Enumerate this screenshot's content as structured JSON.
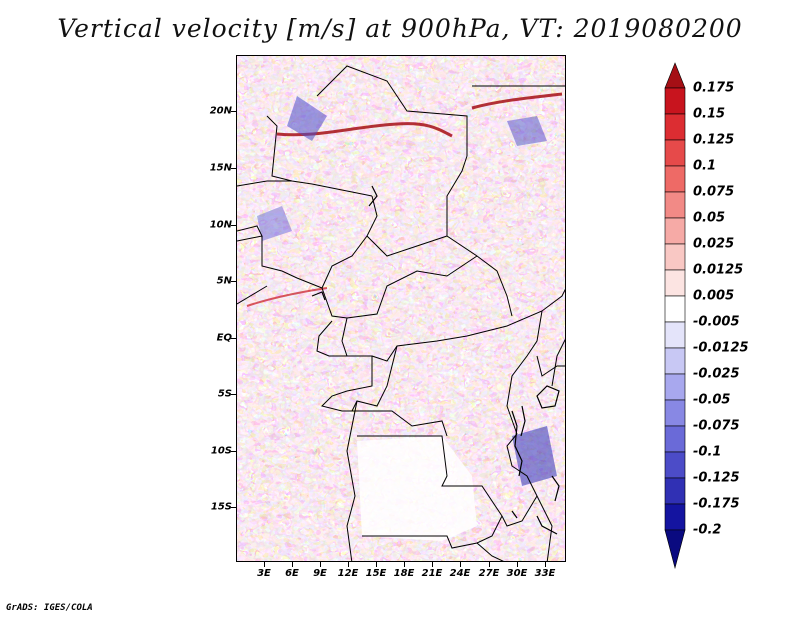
{
  "title": "Vertical velocity [m/s] at 900hPa, VT: 2019080200",
  "credit": "GrADS: IGES/COLA",
  "map": {
    "region": "Central Africa",
    "lon_range": [
      0,
      35
    ],
    "lat_range": [
      -20,
      24.5
    ],
    "lat_labels": [
      "20N",
      "15N",
      "10N",
      "5N",
      "EQ",
      "5S",
      "10S",
      "15S"
    ],
    "lon_labels": [
      "3E",
      "6E",
      "9E",
      "12E",
      "15E",
      "18E",
      "21E",
      "24E",
      "27E",
      "30E",
      "33E"
    ],
    "field": "vertical velocity",
    "units": "m/s",
    "level": "900hPa"
  },
  "colorbar": {
    "labels": [
      "0.175",
      "0.15",
      "0.125",
      "0.1",
      "0.075",
      "0.05",
      "0.025",
      "0.0125",
      "0.005",
      "-0.005",
      "-0.0125",
      "-0.025",
      "-0.05",
      "-0.075",
      "-0.1",
      "-0.125",
      "-0.175",
      "-0.2"
    ],
    "colors": [
      "#a50f15",
      "#c8141e",
      "#dc2d32",
      "#e64a4a",
      "#ee6a66",
      "#f28a86",
      "#f6aaa6",
      "#f9c8c4",
      "#fce4e2",
      "#ffffff",
      "#e4e4fa",
      "#c8c8f4",
      "#a8a8ee",
      "#8888e4",
      "#6a6ad8",
      "#4c4cc8",
      "#3030b4",
      "#1414a0",
      "#0a0a80"
    ]
  }
}
